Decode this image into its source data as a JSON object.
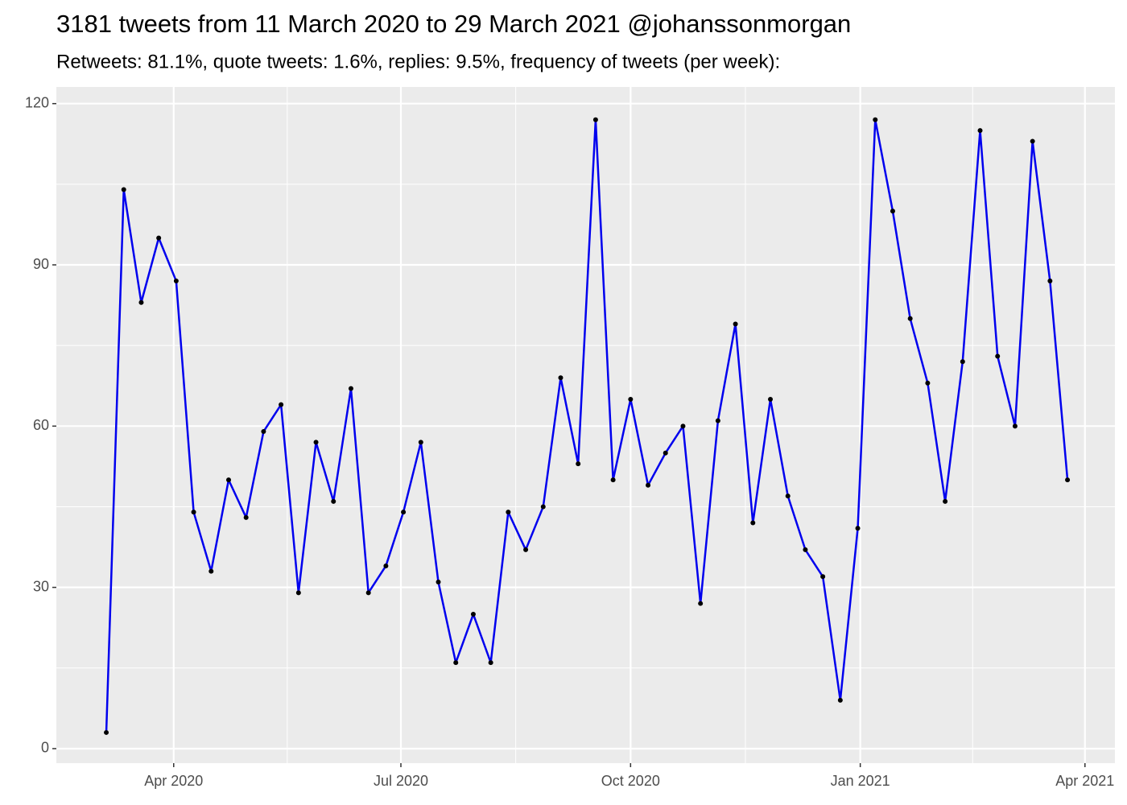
{
  "chart_data": {
    "type": "line",
    "title": "3181 tweets from 11 March 2020 to 29 March 2021 @johanssonmorgan",
    "subtitle": "Retweets: 81.1%, quote tweets: 1.6%, replies: 9.5%, frequency of tweets (per week):",
    "x": [
      "2020-03-05",
      "2020-03-12",
      "2020-03-19",
      "2020-03-26",
      "2020-04-02",
      "2020-04-09",
      "2020-04-16",
      "2020-04-23",
      "2020-04-30",
      "2020-05-07",
      "2020-05-14",
      "2020-05-21",
      "2020-05-28",
      "2020-06-04",
      "2020-06-11",
      "2020-06-18",
      "2020-06-25",
      "2020-07-02",
      "2020-07-09",
      "2020-07-16",
      "2020-07-23",
      "2020-07-30",
      "2020-08-06",
      "2020-08-13",
      "2020-08-20",
      "2020-08-27",
      "2020-09-03",
      "2020-09-10",
      "2020-09-17",
      "2020-09-24",
      "2020-10-01",
      "2020-10-08",
      "2020-10-15",
      "2020-10-22",
      "2020-10-29",
      "2020-11-05",
      "2020-11-12",
      "2020-11-19",
      "2020-11-26",
      "2020-12-03",
      "2020-12-10",
      "2020-12-17",
      "2020-12-24",
      "2020-12-31",
      "2021-01-07",
      "2021-01-14",
      "2021-01-21",
      "2021-01-28",
      "2021-02-04",
      "2021-02-11",
      "2021-02-18",
      "2021-02-25",
      "2021-03-04",
      "2021-03-11",
      "2021-03-18",
      "2021-03-25"
    ],
    "series": [
      {
        "color": "#0000ee",
        "values": [
          3,
          104,
          83,
          95,
          87,
          44,
          33,
          50,
          43,
          59,
          64,
          29,
          57,
          46,
          67,
          29,
          34,
          44,
          57,
          31,
          16,
          25,
          16,
          44,
          37,
          45,
          69,
          53,
          117,
          50,
          65,
          49,
          55,
          60,
          27,
          61,
          79,
          42,
          65,
          47,
          37,
          32,
          9,
          41,
          117,
          100,
          80,
          68,
          46,
          72,
          115,
          73,
          60,
          113,
          87,
          50
        ]
      }
    ],
    "xlim": [
      "2020-02-14",
      "2021-04-13"
    ],
    "xticks": [
      {
        "value": "2020-04-01",
        "label": "Apr 2020"
      },
      {
        "value": "2020-07-01",
        "label": "Jul 2020"
      },
      {
        "value": "2020-10-01",
        "label": "Oct 2020"
      },
      {
        "value": "2021-01-01",
        "label": "Jan 2021"
      },
      {
        "value": "2021-04-01",
        "label": "Apr 2021"
      }
    ],
    "ylim": [
      -2.7,
      123.1
    ],
    "yticks": [
      0,
      30,
      60,
      90,
      120
    ],
    "grid": true
  }
}
